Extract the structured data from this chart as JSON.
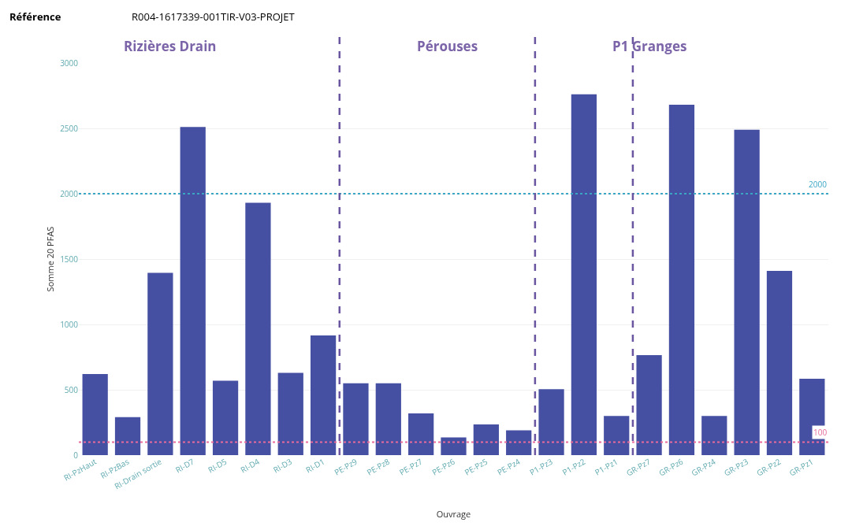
{
  "chart_data": {
    "type": "bar",
    "title": "Référence",
    "subtitle": "R004-1617339-001TIR-V03-PROJET",
    "xlabel": "Ouvrage",
    "ylabel": "Somme 20 PFAS",
    "categories": [
      "RI-PzHaut",
      "RI-PzBas",
      "RI-Drain sortie",
      "RI-D7",
      "RI-D5",
      "RI-D4",
      "RI-D3",
      "RI-D1",
      "PE-Pz9",
      "PE-Pz8",
      "PE-Pz7",
      "PE-Pz6",
      "PE-Pz5",
      "PE-Pz4",
      "P1-Pz3",
      "P1-Pz2",
      "P1-Pz1",
      "GR-Pz7",
      "GR-Pz6",
      "GR-Pz4",
      "GR-Pz3",
      "GR-Pz2",
      "GR-Pz1"
    ],
    "values": [
      620,
      290,
      1395,
      2510,
      570,
      1930,
      630,
      915,
      550,
      550,
      320,
      135,
      235,
      190,
      505,
      2760,
      300,
      765,
      2680,
      300,
      2490,
      1410,
      585
    ],
    "color": "#4650a3",
    "ylim": [
      0,
      3000
    ],
    "yticks": [
      0,
      500,
      1000,
      1500,
      2000,
      2500,
      3000
    ],
    "grid": "y",
    "ref_lines": [
      {
        "axis": "y",
        "value": 2000,
        "label": "2000",
        "color": "#3aa6c4",
        "line_style": "dotted"
      },
      {
        "axis": "y",
        "value": 100,
        "label": "100",
        "color": "#e86a9a",
        "line_style": "dotted"
      }
    ],
    "annotations": [
      "Rizières Drain",
      "Pérouses",
      "P1 Granges"
    ]
  }
}
